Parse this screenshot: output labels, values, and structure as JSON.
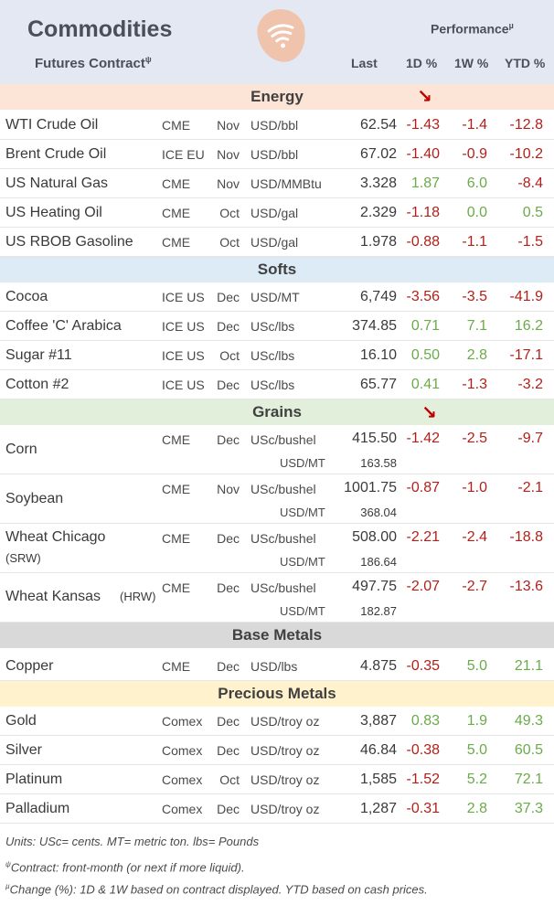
{
  "header": {
    "title": "Commodities",
    "subtitle": "Futures Contract",
    "subtitle_mark": "ψ",
    "performance_label": "Performance",
    "performance_mark": "µ",
    "col_last": "Last",
    "col_1d": "1D %",
    "col_1w": "1W %",
    "col_ytd": "YTD %"
  },
  "colors": {
    "negative": "#b3201a",
    "positive": "#6aab4a",
    "energy_band": "#fce4d6",
    "softs_band": "#ddebf7",
    "grains_band": "#e2efda",
    "base_metals_band": "#d9d9d9",
    "precious_metals_band": "#fff2cc"
  },
  "sections": {
    "energy": {
      "label": "Energy",
      "arrow": "↘",
      "rows": [
        {
          "name": "WTI Crude Oil",
          "exchange": "CME",
          "month": "Nov",
          "unit": "USD/bbl",
          "last": "62.54",
          "d1": "-1.43",
          "w1": "-1.4",
          "ytd": "-12.8"
        },
        {
          "name": "Brent Crude Oil",
          "exchange": "ICE EU",
          "month": "Nov",
          "unit": "USD/bbl",
          "last": "67.02",
          "d1": "-1.40",
          "w1": "-0.9",
          "ytd": "-10.2"
        },
        {
          "name": "US Natural Gas",
          "exchange": "CME",
          "month": "Nov",
          "unit": "USD/MMBtu",
          "last": "3.328",
          "d1": "1.87",
          "w1": "6.0",
          "ytd": "-8.4"
        },
        {
          "name": "US Heating Oil",
          "exchange": "CME",
          "month": "Oct",
          "unit": "USD/gal",
          "last": "2.329",
          "d1": "-1.18",
          "w1": "0.0",
          "ytd": "0.5"
        },
        {
          "name": "US RBOB Gasoline",
          "exchange": "CME",
          "month": "Oct",
          "unit": "USD/gal",
          "last": "1.978",
          "d1": "-0.88",
          "w1": "-1.1",
          "ytd": "-1.5"
        }
      ]
    },
    "softs": {
      "label": "Softs",
      "rows": [
        {
          "name": "Cocoa",
          "exchange": "ICE US",
          "month": "Dec",
          "unit": "USD/MT",
          "last": "6,749",
          "d1": "-3.56",
          "w1": "-3.5",
          "ytd": "-41.9"
        },
        {
          "name": "Coffee 'C' Arabica",
          "exchange": "ICE US",
          "month": "Dec",
          "unit": "USc/lbs",
          "last": "374.85",
          "d1": "0.71",
          "w1": "7.1",
          "ytd": "16.2"
        },
        {
          "name": "Sugar #11",
          "exchange": "ICE US",
          "month": "Oct",
          "unit": "USc/lbs",
          "last": "16.10",
          "d1": "0.50",
          "w1": "2.8",
          "ytd": "-17.1"
        },
        {
          "name": "Cotton #2",
          "exchange": "ICE US",
          "month": "Dec",
          "unit": "USc/lbs",
          "last": "65.77",
          "d1": "0.41",
          "w1": "-1.3",
          "ytd": "-3.2"
        }
      ]
    },
    "grains": {
      "label": "Grains",
      "arrow": "↘",
      "rows": [
        {
          "name": "Corn",
          "name_sub": "",
          "exchange": "CME",
          "month": "Dec",
          "unit": "USc/bushel",
          "last": "415.50",
          "unit2": "USD/MT",
          "last2": "163.58",
          "d1": "-1.42",
          "w1": "-2.5",
          "ytd": "-9.7"
        },
        {
          "name": "Soybean",
          "name_sub": "",
          "exchange": "CME",
          "month": "Nov",
          "unit": "USc/bushel",
          "last": "1001.75",
          "unit2": "USD/MT",
          "last2": "368.04",
          "d1": "-0.87",
          "w1": "-1.0",
          "ytd": "-2.1"
        },
        {
          "name": "Wheat Chicago",
          "name_sub": "(SRW)",
          "exchange": "CME",
          "month": "Dec",
          "unit": "USc/bushel",
          "last": "508.00",
          "unit2": "USD/MT",
          "last2": "186.64",
          "d1": "-2.21",
          "w1": "-2.4",
          "ytd": "-18.8"
        },
        {
          "name": "Wheat Kansas",
          "name_inline": "(HRW)",
          "exchange": "CME",
          "month": "Dec",
          "unit": "USc/bushel",
          "last": "497.75",
          "unit2": "USD/MT",
          "last2": "182.87",
          "d1": "-2.07",
          "w1": "-2.7",
          "ytd": "-13.6"
        }
      ]
    },
    "base_metals": {
      "label": "Base Metals",
      "rows": [
        {
          "name": "Copper",
          "exchange": "CME",
          "month": "Dec",
          "unit": "USD/lbs",
          "last": "4.875",
          "d1": "-0.35",
          "w1": "5.0",
          "ytd": "21.1"
        }
      ]
    },
    "precious_metals": {
      "label": "Precious Metals",
      "rows": [
        {
          "name": "Gold",
          "exchange": "Comex",
          "month": "Dec",
          "unit": "USD/troy oz",
          "last": "3,887",
          "d1": "0.83",
          "w1": "1.9",
          "ytd": "49.3"
        },
        {
          "name": "Silver",
          "exchange": "Comex",
          "month": "Dec",
          "unit": "USD/troy oz",
          "last": "46.84",
          "d1": "-0.38",
          "w1": "5.0",
          "ytd": "60.5"
        },
        {
          "name": "Platinum",
          "exchange": "Comex",
          "month": "Oct",
          "unit": "USD/troy oz",
          "last": "1,585",
          "d1": "-1.52",
          "w1": "5.2",
          "ytd": "72.1"
        },
        {
          "name": "Palladium",
          "exchange": "Comex",
          "month": "Dec",
          "unit": "USD/troy oz",
          "last": "1,287",
          "d1": "-0.31",
          "w1": "2.8",
          "ytd": "37.3"
        }
      ]
    }
  },
  "footer": {
    "units": "Units: USc= cents.  MT= metric ton.  lbs= Pounds",
    "contract_mark": "ψ",
    "contract": "Contract: front-month (or next if more liquid).",
    "change_mark": "µ",
    "change": "Change (%): 1D & 1W based on contract displayed. YTD based on cash prices."
  }
}
